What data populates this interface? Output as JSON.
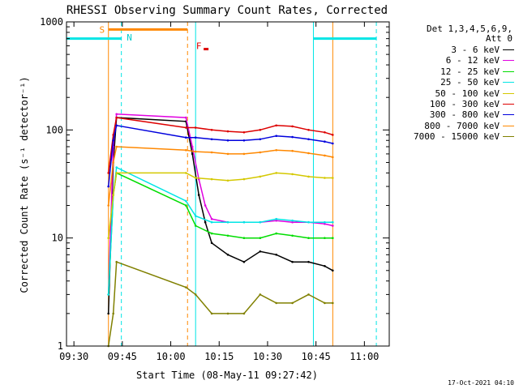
{
  "chart_data": {
    "type": "line",
    "title": "RHESSI Observing Summary Count Rates, Corrected",
    "xlabel": "Start Time (08-May-11 09:27:42)",
    "ylabel": "Corrected Count Rate (s⁻¹ detector⁻¹)",
    "x_unit": "minutes after 09:27:42",
    "xlim": [
      0,
      100
    ],
    "ylim": [
      1,
      1000
    ],
    "y_scale": "log",
    "x_ticks": [
      {
        "x": 2.3,
        "label": "09:30"
      },
      {
        "x": 17.3,
        "label": "09:45"
      },
      {
        "x": 32.3,
        "label": "10:00"
      },
      {
        "x": 47.3,
        "label": "10:15"
      },
      {
        "x": 62.3,
        "label": "10:30"
      },
      {
        "x": 77.3,
        "label": "10:45"
      },
      {
        "x": 92.3,
        "label": "11:00"
      }
    ],
    "y_ticks": [
      {
        "y": 1,
        "label": "1"
      },
      {
        "y": 10,
        "label": "10"
      },
      {
        "y": 100,
        "label": "100"
      },
      {
        "y": 1000,
        "label": "1000"
      }
    ],
    "grid": false,
    "legend_position": "right",
    "detector_header": [
      "Det 1,3,4,5,6,9,",
      "Att 0"
    ],
    "series": [
      {
        "name": "3 - 6 keV",
        "color": "#000000",
        "x": [
          13,
          14.5,
          15.5,
          37,
          39,
          41,
          43,
          45,
          50,
          55,
          60,
          65,
          70,
          75,
          80,
          82.5
        ],
        "y": [
          2,
          50,
          130,
          120,
          60,
          25,
          14,
          9,
          7,
          6,
          7.5,
          7,
          6,
          6,
          5.5,
          5
        ]
      },
      {
        "name": "6 - 12 keV",
        "color": "#e000e0",
        "x": [
          13,
          14.5,
          15.5,
          37,
          39,
          41,
          43,
          45,
          50,
          55,
          60,
          65,
          70,
          75,
          80,
          82.5
        ],
        "y": [
          3,
          70,
          140,
          130,
          70,
          35,
          20,
          15,
          14,
          14,
          14,
          14.5,
          14,
          14,
          13.5,
          13
        ]
      },
      {
        "name": "12 - 25 keV",
        "color": "#00dd00",
        "x": [
          13,
          14.5,
          15.5,
          37,
          40,
          45,
          50,
          55,
          60,
          65,
          70,
          75,
          80,
          82.5
        ],
        "y": [
          3,
          25,
          40,
          20,
          13,
          11,
          10.5,
          10,
          10,
          11,
          10.5,
          10,
          10,
          10
        ]
      },
      {
        "name": "25 - 50 keV",
        "color": "#00e5e5",
        "x": [
          13,
          14.5,
          15.5,
          37,
          40,
          45,
          50,
          55,
          60,
          65,
          70,
          75,
          80,
          82.5
        ],
        "y": [
          3,
          25,
          45,
          22,
          16,
          14,
          14,
          14,
          14,
          15,
          14.5,
          14,
          14,
          14
        ]
      },
      {
        "name": "50 - 100 keV",
        "color": "#d4c800",
        "x": [
          13,
          14.5,
          15.5,
          37,
          40,
          45,
          50,
          55,
          60,
          65,
          70,
          75,
          80,
          82.5
        ],
        "y": [
          10,
          25,
          40,
          40,
          36,
          35,
          34,
          35,
          37,
          40,
          39,
          37,
          36,
          36
        ]
      },
      {
        "name": "100 - 300 keV",
        "color": "#dd0000",
        "x": [
          13,
          14.5,
          15.5,
          37,
          40,
          45,
          50,
          55,
          60,
          65,
          70,
          75,
          80,
          82.5
        ],
        "y": [
          40,
          90,
          130,
          105,
          105,
          100,
          97,
          95,
          100,
          110,
          108,
          100,
          95,
          90
        ]
      },
      {
        "name": "300 - 800 keV",
        "color": "#0000dd",
        "x": [
          13,
          14.5,
          15.5,
          37,
          40,
          45,
          50,
          55,
          60,
          65,
          70,
          75,
          80,
          82.5
        ],
        "y": [
          30,
          80,
          110,
          85,
          85,
          82,
          80,
          80,
          82,
          88,
          86,
          82,
          78,
          75
        ]
      },
      {
        "name": "800 - 7000 keV",
        "color": "#ff8800",
        "x": [
          13,
          14.5,
          15.5,
          37,
          40,
          45,
          50,
          55,
          60,
          65,
          70,
          75,
          80,
          82.5
        ],
        "y": [
          20,
          50,
          70,
          65,
          63,
          62,
          60,
          60,
          62,
          65,
          64,
          61,
          58,
          56
        ]
      },
      {
        "name": "7000 - 15000 keV",
        "color": "#808000",
        "x": [
          13,
          14.5,
          15.5,
          37,
          40,
          45,
          50,
          55,
          60,
          65,
          70,
          75,
          80,
          82.5
        ],
        "y": [
          1,
          2,
          6,
          3.5,
          3,
          2,
          2,
          2,
          3,
          2.5,
          2.5,
          3,
          2.5,
          2.5
        ]
      }
    ],
    "annotations": {
      "letters": [
        {
          "text": "S",
          "x": 11,
          "y": 850,
          "color": "#ff8800"
        },
        {
          "text": "N",
          "x": 19.5,
          "y": 720,
          "color": "#00cccc"
        },
        {
          "text": "F",
          "x": 41,
          "y": 600,
          "color": "#dd0000"
        }
      ],
      "flare_marker": {
        "x": [
          42.5,
          44
        ],
        "y": 560,
        "color": "#dd0000"
      },
      "saa_bar": {
        "x": [
          13,
          37.5
        ],
        "y": 850,
        "color": "#ff8800"
      },
      "night_bars": [
        {
          "x": [
            0,
            17
          ],
          "y": 700,
          "color": "#00e5e5"
        },
        {
          "x": [
            76.5,
            96
          ],
          "y": 700,
          "color": "#00e5e5"
        }
      ],
      "vlines": [
        {
          "x": 0,
          "color": "#00e5e5",
          "dash": false
        },
        {
          "x": 13,
          "color": "#ff8800",
          "dash": false
        },
        {
          "x": 17,
          "color": "#00e5e5",
          "dash": true
        },
        {
          "x": 37.5,
          "color": "#ff8800",
          "dash": true
        },
        {
          "x": 40,
          "color": "#00e5e5",
          "dash": false
        },
        {
          "x": 76.5,
          "color": "#00e5e5",
          "dash": false
        },
        {
          "x": 82.5,
          "color": "#ff8800",
          "dash": false
        },
        {
          "x": 96,
          "color": "#00e5e5",
          "dash": true
        }
      ]
    },
    "timestamp": "17-Oct-2021 04:10"
  }
}
